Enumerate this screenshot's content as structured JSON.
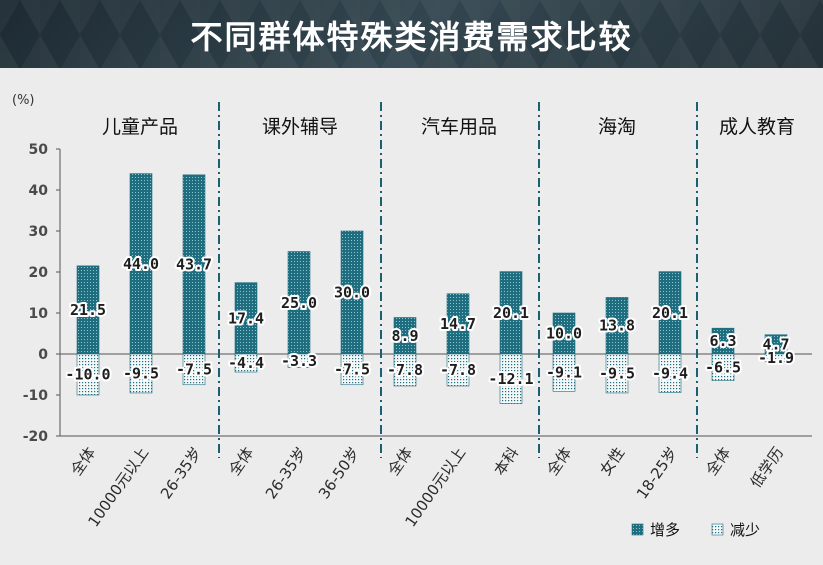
{
  "header": {
    "title": "不同群体特殊类消费需求比较"
  },
  "chart_data": {
    "type": "bar",
    "title": "不同群体特殊类消费需求比较",
    "unit": "(%)",
    "ylim": [
      -20,
      50
    ],
    "yticks": [
      50,
      40,
      30,
      20,
      10,
      0,
      -10,
      -20
    ],
    "groups": [
      {
        "name": "儿童产品",
        "categories": [
          "全体",
          "10000元以上",
          "26-35岁"
        ],
        "increase": [
          21.5,
          44.0,
          43.7
        ],
        "decrease": [
          -10.0,
          -9.5,
          -7.5
        ]
      },
      {
        "name": "课外辅导",
        "categories": [
          "全体",
          "26-35岁",
          "36-50岁"
        ],
        "increase": [
          17.4,
          25.0,
          30.0
        ],
        "decrease": [
          -4.4,
          -3.3,
          -7.5
        ]
      },
      {
        "name": "汽车用品",
        "categories": [
          "全体",
          "10000元以上",
          "本科"
        ],
        "increase": [
          8.9,
          14.7,
          20.1
        ],
        "decrease": [
          -7.8,
          -7.8,
          -12.1
        ]
      },
      {
        "name": "海淘",
        "categories": [
          "全体",
          "女性",
          "18-25岁"
        ],
        "increase": [
          10.0,
          13.8,
          20.1
        ],
        "decrease": [
          -9.1,
          -9.5,
          -9.4
        ]
      },
      {
        "name": "成人教育",
        "categories": [
          "全体",
          "低学历"
        ],
        "increase": [
          6.3,
          4.7
        ],
        "decrease": [
          -6.5,
          -1.9
        ]
      }
    ],
    "legend": [
      {
        "name": "增多",
        "color": "#1e6e80",
        "pattern": "dense-dots"
      },
      {
        "name": "减少",
        "color": "#1e6e80",
        "pattern": "sparse-dots"
      }
    ]
  },
  "colors": {
    "bar": "#1e6e80",
    "divider": "#1a5f72",
    "axis": "#555555"
  }
}
